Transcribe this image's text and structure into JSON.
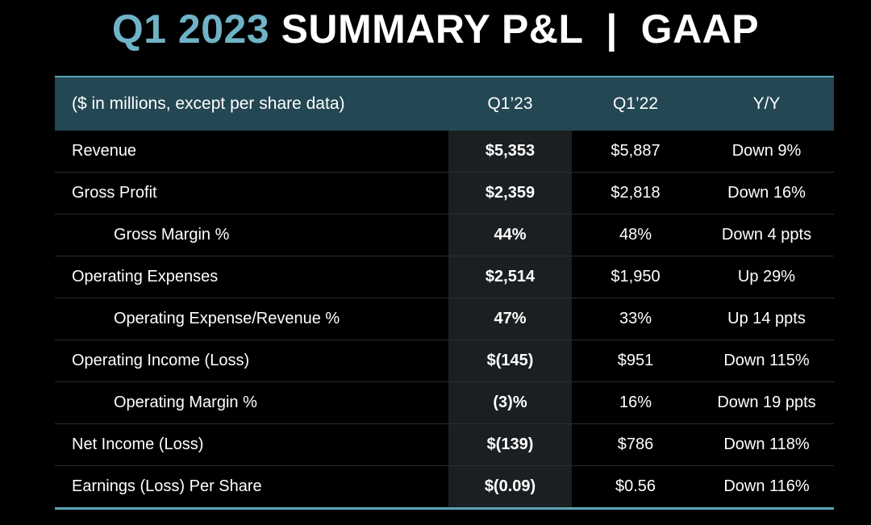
{
  "title": {
    "accent": "Q1 2023",
    "main": " SUMMARY P&L  |  GAAP"
  },
  "colors": {
    "accent": "#6fb3c6",
    "header_bg": "#234753",
    "rule": "#5aa5b8",
    "highlight_col": "#1c1f21"
  },
  "table": {
    "headers": [
      "($ in millions, except per share data)",
      "Q1’23",
      "Q1’22",
      "Y/Y"
    ],
    "rows": [
      {
        "label": "Revenue",
        "q1_23": "$5,353",
        "q1_22": "$5,887",
        "yy": "Down 9%"
      },
      {
        "label": "Gross Profit",
        "q1_23": "$2,359",
        "q1_22": "$2,818",
        "yy": "Down 16%"
      },
      {
        "label": "Gross Margin %",
        "q1_23": "44%",
        "q1_22": "48%",
        "yy": "Down 4 ppts"
      },
      {
        "label": "Operating Expenses",
        "q1_23": "$2,514",
        "q1_22": "$1,950",
        "yy": "Up 29%"
      },
      {
        "label": "Operating Expense/Revenue %",
        "q1_23": "47%",
        "q1_22": "33%",
        "yy": "Up 14 ppts"
      },
      {
        "label": "Operating Income (Loss)",
        "q1_23": "$(145)",
        "q1_22": "$951",
        "yy": "Down 115%"
      },
      {
        "label": "Operating Margin %",
        "q1_23": "(3)%",
        "q1_22": "16%",
        "yy": "Down 19 ppts"
      },
      {
        "label": "Net Income (Loss)",
        "q1_23": "$(139)",
        "q1_22": "$786",
        "yy": "Down 118%"
      },
      {
        "label": "Earnings (Loss) Per Share",
        "q1_23": "$(0.09)",
        "q1_22": "$0.56",
        "yy": "Down 116%"
      }
    ]
  }
}
